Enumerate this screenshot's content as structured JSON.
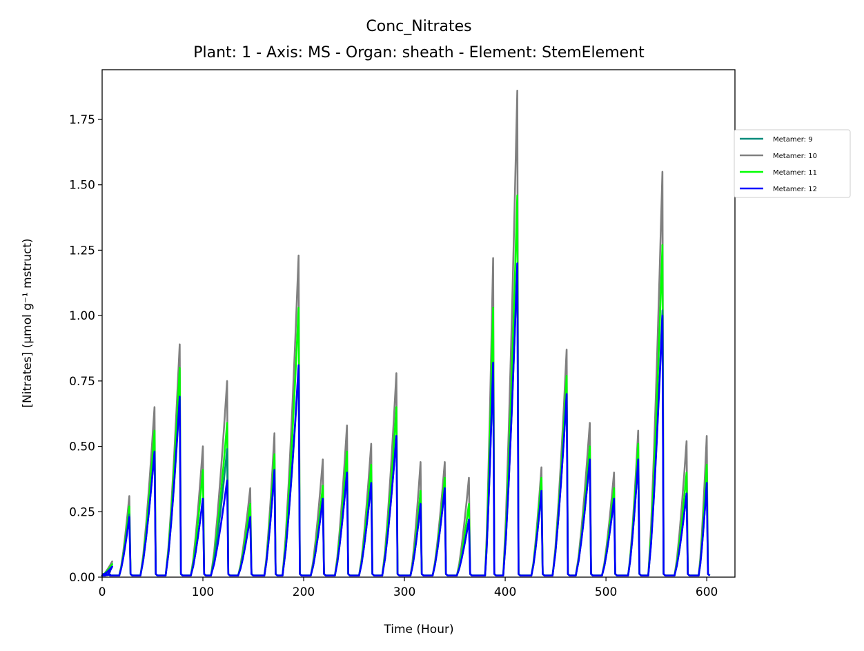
{
  "chart_data": {
    "type": "line",
    "title": "Conc_Nitrates",
    "subtitle": "Plant: 1 - Axis: MS - Organ: sheath - Element: StemElement",
    "xlabel": "Time (Hour)",
    "ylabel": "[Nitrates] (µmol g⁻¹ mstruct)",
    "xlim": [
      0,
      628
    ],
    "ylim": [
      0,
      1.94
    ],
    "xticks": [
      0,
      100,
      200,
      300,
      400,
      500,
      600
    ],
    "yticks": [
      0.0,
      0.25,
      0.5,
      0.75,
      1.0,
      1.25,
      1.5,
      1.75
    ],
    "xtick_labels": [
      "0",
      "100",
      "200",
      "300",
      "400",
      "500",
      "600"
    ],
    "ytick_labels": [
      "0.00",
      "0.25",
      "0.50",
      "0.75",
      "1.00",
      "1.25",
      "1.50",
      "1.75"
    ],
    "grid": false,
    "legend_position": "outside-right-top",
    "peaks": {
      "x": [
        0,
        5,
        27,
        52,
        77,
        100,
        124,
        147,
        171,
        195,
        219,
        243,
        267,
        292,
        316,
        340,
        364,
        388,
        412,
        436,
        461,
        484,
        508,
        532,
        556,
        580,
        600
      ],
      "duration": [
        8,
        10,
        10,
        14,
        14,
        12,
        16,
        12,
        10,
        16,
        12,
        12,
        12,
        14,
        10,
        12,
        12,
        8,
        14,
        10,
        14,
        14,
        12,
        10,
        14,
        12,
        8
      ]
    },
    "series": [
      {
        "name": "Metamer: 9",
        "color": "#008b7a",
        "values": [
          0.01,
          0.04,
          0.24,
          0.48,
          0.68,
          0.3,
          0.49,
          0.23,
          0.41,
          0.8,
          0.3,
          0.4,
          0.36,
          0.54,
          0.28,
          0.34,
          0.22,
          0.82,
          1.2,
          0.33,
          0.7,
          0.45,
          0.3,
          0.45,
          1.02,
          0.32,
          0.36
        ]
      },
      {
        "name": "Metamer: 10",
        "color": "#808080",
        "values": [
          0.02,
          0.06,
          0.31,
          0.65,
          0.89,
          0.5,
          0.75,
          0.34,
          0.55,
          1.23,
          0.45,
          0.58,
          0.51,
          0.78,
          0.44,
          0.44,
          0.38,
          1.22,
          1.86,
          0.42,
          0.87,
          0.59,
          0.4,
          0.56,
          1.55,
          0.52,
          0.54
        ]
      },
      {
        "name": "Metamer: 11",
        "color": "#00ff00",
        "values": [
          0.01,
          0.05,
          0.27,
          0.56,
          0.8,
          0.41,
          0.59,
          0.28,
          0.47,
          1.03,
          0.35,
          0.48,
          0.43,
          0.65,
          0.33,
          0.38,
          0.28,
          1.03,
          1.46,
          0.38,
          0.77,
          0.5,
          0.34,
          0.51,
          1.27,
          0.4,
          0.43
        ]
      },
      {
        "name": "Metamer: 12",
        "color": "#0000ff",
        "values": [
          0.01,
          0.04,
          0.23,
          0.48,
          0.69,
          0.3,
          0.37,
          0.23,
          0.41,
          0.81,
          0.3,
          0.4,
          0.36,
          0.54,
          0.28,
          0.34,
          0.22,
          0.82,
          1.2,
          0.33,
          0.7,
          0.45,
          0.3,
          0.45,
          1.0,
          0.32,
          0.36
        ]
      }
    ]
  }
}
